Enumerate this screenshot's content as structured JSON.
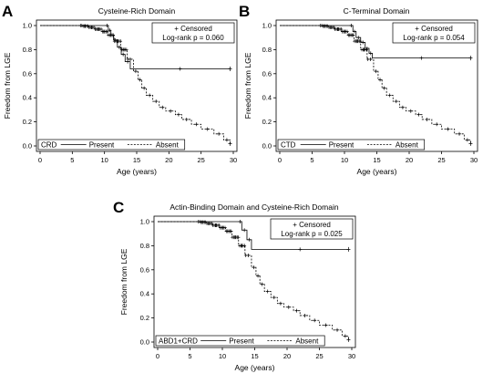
{
  "chart_data": [
    {
      "panel_label": "A",
      "type": "line",
      "title": "Cysteine-Rich Domain",
      "xlabel": "Age (years)",
      "ylabel": "Freedom from LGE",
      "xlim": [
        0,
        30
      ],
      "ylim": [
        0,
        1
      ],
      "xticks": [
        "0",
        "5",
        "10",
        "15",
        "20",
        "25",
        "30"
      ],
      "yticks": [
        "0.0",
        "0.2",
        "0.4",
        "0.6",
        "0.8",
        "1.0"
      ],
      "censored_label": "+ Censored",
      "pvalue_label": "Log-rank p = 0.060",
      "legend_title": "CRD",
      "series": [
        {
          "name": "Present",
          "style": "solid",
          "x": [
            0,
            10.2,
            10.6,
            11.0,
            11.4,
            12.0,
            12.6,
            13.2,
            14.0,
            29.5
          ],
          "y": [
            1.0,
            1.0,
            0.96,
            0.92,
            0.88,
            0.82,
            0.76,
            0.7,
            0.64,
            0.64
          ]
        },
        {
          "name": "Absent",
          "style": "dashed",
          "x": [
            0,
            6.5,
            7.5,
            8.5,
            9.5,
            10.5,
            11.5,
            12.5,
            13.5,
            14.5,
            15.2,
            15.8,
            16.5,
            17.5,
            18.5,
            19.5,
            21,
            22,
            23.5,
            25,
            27,
            28.5,
            29.5
          ],
          "y": [
            1.0,
            0.995,
            0.985,
            0.97,
            0.95,
            0.92,
            0.87,
            0.8,
            0.72,
            0.62,
            0.55,
            0.48,
            0.42,
            0.37,
            0.32,
            0.29,
            0.26,
            0.22,
            0.18,
            0.14,
            0.1,
            0.05,
            0.02
          ]
        }
      ]
    },
    {
      "panel_label": "B",
      "type": "line",
      "title": "C-Terminal Domain",
      "xlabel": "Age (years)",
      "ylabel": "Freedom from LGE",
      "xlim": [
        0,
        30
      ],
      "ylim": [
        0,
        1
      ],
      "xticks": [
        "0",
        "5",
        "10",
        "15",
        "20",
        "25",
        "30"
      ],
      "yticks": [
        "0.0",
        "0.2",
        "0.4",
        "0.6",
        "0.8",
        "1.0"
      ],
      "censored_label": "+ Censored",
      "pvalue_label": "Log-rank p = 0.054",
      "legend_title": "CTD",
      "series": [
        {
          "name": "Present",
          "style": "solid",
          "x": [
            0,
            10.8,
            11.3,
            11.8,
            12.5,
            13.2,
            13.8,
            14.3,
            29.5
          ],
          "y": [
            1.0,
            1.0,
            0.95,
            0.9,
            0.86,
            0.81,
            0.77,
            0.73,
            0.73
          ]
        },
        {
          "name": "Absent",
          "style": "dashed",
          "x": [
            0,
            6.5,
            7.5,
            8.5,
            9.5,
            10.5,
            11.5,
            12.5,
            13.5,
            14.5,
            15.2,
            15.8,
            16.5,
            17.5,
            18.5,
            19.5,
            21,
            22,
            23.5,
            25,
            27,
            28.5,
            29.5
          ],
          "y": [
            1.0,
            0.995,
            0.985,
            0.97,
            0.95,
            0.92,
            0.87,
            0.8,
            0.72,
            0.62,
            0.55,
            0.48,
            0.42,
            0.37,
            0.32,
            0.29,
            0.26,
            0.22,
            0.18,
            0.14,
            0.1,
            0.05,
            0.02
          ]
        }
      ]
    },
    {
      "panel_label": "C",
      "type": "line",
      "title": "Actin-Binding Domain and Cysteine-Rich Domain",
      "xlabel": "Age (years)",
      "ylabel": "Freedom from LGE",
      "xlim": [
        0,
        30
      ],
      "ylim": [
        0,
        1
      ],
      "xticks": [
        "0",
        "5",
        "10",
        "15",
        "20",
        "25",
        "30"
      ],
      "yticks": [
        "0.0",
        "0.2",
        "0.4",
        "0.6",
        "0.8",
        "1.0"
      ],
      "censored_label": "+ Censored",
      "pvalue_label": "Log-rank p = 0.025",
      "legend_title": "ABD1+CRD",
      "series": [
        {
          "name": "Present",
          "style": "solid",
          "x": [
            0,
            12.5,
            13.0,
            13.8,
            14.5,
            29.5
          ],
          "y": [
            1.0,
            1.0,
            0.93,
            0.85,
            0.77,
            0.77
          ]
        },
        {
          "name": "Absent",
          "style": "dashed",
          "x": [
            0,
            6.5,
            7.5,
            8.5,
            9.5,
            10.5,
            11.5,
            12.5,
            13.5,
            14.5,
            15.2,
            15.8,
            16.5,
            17.5,
            18.5,
            19.5,
            21,
            22,
            23.5,
            25,
            27,
            28.5,
            29.5
          ],
          "y": [
            1.0,
            0.995,
            0.985,
            0.97,
            0.95,
            0.92,
            0.87,
            0.8,
            0.72,
            0.62,
            0.55,
            0.48,
            0.42,
            0.37,
            0.32,
            0.29,
            0.26,
            0.22,
            0.18,
            0.14,
            0.1,
            0.05,
            0.02
          ]
        }
      ]
    }
  ]
}
